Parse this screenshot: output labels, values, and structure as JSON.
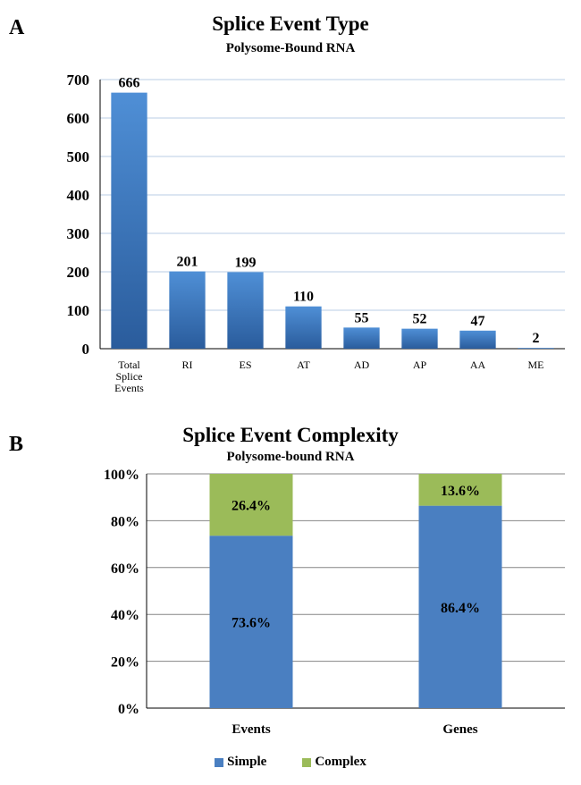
{
  "chart_data": [
    {
      "panel": "A",
      "type": "bar",
      "title": "Splice Event Type",
      "subtitle": "Polysome-Bound RNA",
      "categories": [
        "Total Splice Events",
        "RI",
        "ES",
        "AT",
        "AD",
        "AP",
        "AA",
        "ME"
      ],
      "category_lines": [
        [
          "Total",
          "Splice",
          "Events"
        ],
        [
          "RI"
        ],
        [
          "ES"
        ],
        [
          "AT"
        ],
        [
          "AD"
        ],
        [
          "AP"
        ],
        [
          "AA"
        ],
        [
          "ME"
        ]
      ],
      "values": [
        666,
        201,
        199,
        110,
        55,
        52,
        47,
        2
      ],
      "yticks": [
        "0",
        "100",
        "200",
        "300",
        "400",
        "500",
        "600",
        "700"
      ],
      "ylim": [
        0,
        700
      ],
      "grid": true,
      "colors": {
        "bar_top": "#4f8fd6",
        "bar_bottom": "#2a5c9c",
        "grid": "#b9cde4"
      }
    },
    {
      "panel": "B",
      "type": "bar",
      "stacked": true,
      "title": "Splice Event Complexity",
      "subtitle": "Polysome-bound RNA",
      "categories": [
        "Events",
        "Genes"
      ],
      "series": [
        {
          "name": "Simple",
          "values": [
            73.6,
            86.4
          ],
          "labels": [
            "73.6%",
            "86.4%"
          ],
          "color": "#4a7fc1"
        },
        {
          "name": "Complex",
          "values": [
            26.4,
            13.6
          ],
          "labels": [
            "26.4%",
            "13.6%"
          ],
          "color": "#9bbb59"
        }
      ],
      "yticks": [
        "0%",
        "20%",
        "40%",
        "60%",
        "80%",
        "100%"
      ],
      "ylim": [
        0,
        100
      ],
      "grid": true,
      "legend_position": "bottom",
      "colors": {
        "grid": "#868686"
      }
    }
  ]
}
